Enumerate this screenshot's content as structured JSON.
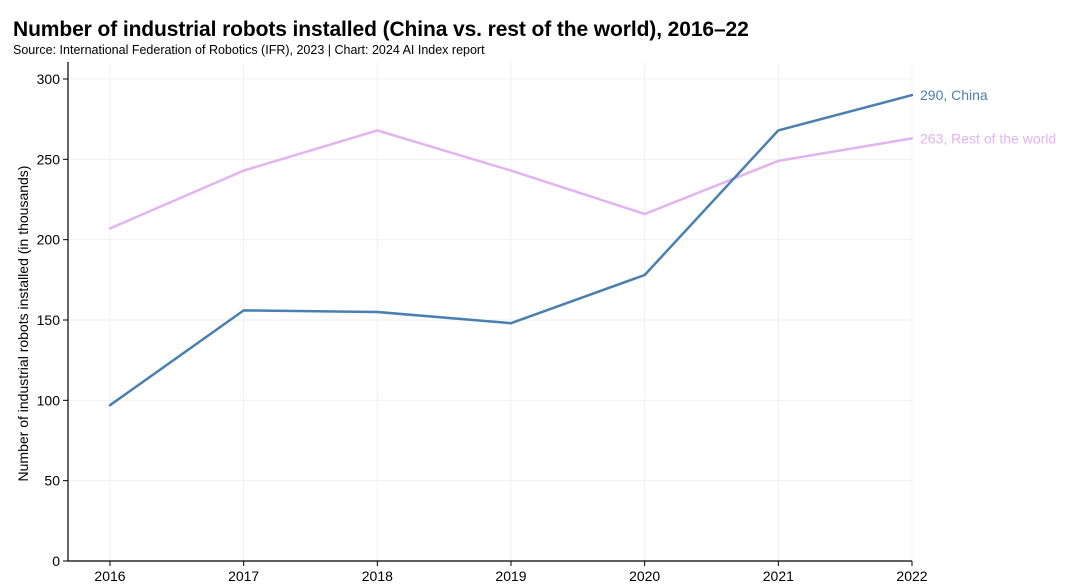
{
  "header": {
    "title": "Number of industrial robots installed (China vs. rest of the world), 2016–22",
    "subtitle": "Source: International Federation of Robotics (IFR), 2023 | Chart: 2024 AI Index report"
  },
  "chart_data": {
    "type": "line",
    "title": "Number of industrial robots installed (China vs. rest of the world), 2016–22",
    "ylabel": "Number of industrial robots installed (in thousands)",
    "xlabel": "",
    "x": [
      2016,
      2017,
      2018,
      2019,
      2020,
      2021,
      2022
    ],
    "x_tick_labels": [
      "2016",
      "2017",
      "2018",
      "2019",
      "2020",
      "2021",
      "2022"
    ],
    "ylim": [
      0,
      300
    ],
    "y_ticks": [
      0,
      50,
      100,
      150,
      200,
      250,
      300
    ],
    "y_tick_labels": [
      "0",
      "50",
      "100",
      "150",
      "200",
      "250",
      "300"
    ],
    "grid": true,
    "legend": "end-of-line labels",
    "series": [
      {
        "name": "China",
        "color": "#4a7fb0",
        "values": [
          97,
          156,
          155,
          148,
          178,
          268,
          290
        ],
        "end_label": "290, China"
      },
      {
        "name": "Rest of the world",
        "color": "#e2b3f0",
        "values": [
          207,
          243,
          268,
          243,
          216,
          249,
          263
        ],
        "end_label": "263, Rest of the world"
      }
    ]
  }
}
